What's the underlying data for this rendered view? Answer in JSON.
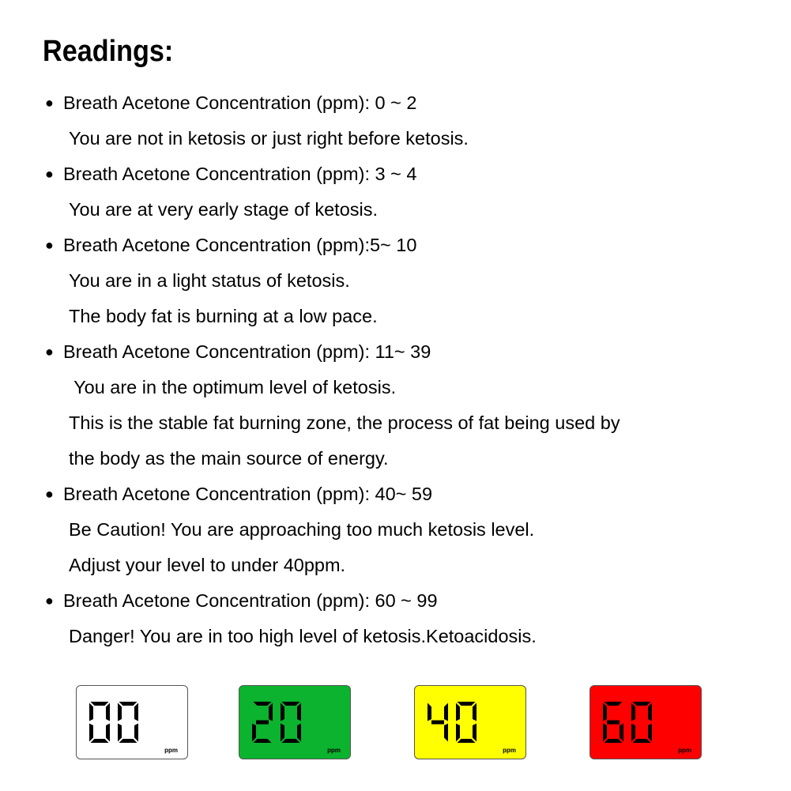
{
  "title": "Readings:",
  "readings": [
    {
      "range": "Breath Acetone Concentration (ppm): 0 ~ 2",
      "desc": [
        "You are not in ketosis or just right before ketosis."
      ]
    },
    {
      "range": "Breath Acetone Concentration (ppm): 3 ~ 4",
      "desc": [
        "You are at very early stage of ketosis."
      ]
    },
    {
      "range": "Breath Acetone Concentration (ppm):5~ 10",
      "desc": [
        "You are in a light status of ketosis.",
        "The body fat is burning at a low pace."
      ]
    },
    {
      "range": "Breath Acetone Concentration (ppm): 11~ 39",
      "desc": [
        " You are in the optimum level of ketosis.",
        "This is the stable fat burning zone, the process of fat being used by",
        "the body as the main source of energy."
      ]
    },
    {
      "range": "Breath Acetone Concentration (ppm): 40~ 59",
      "desc": [
        "Be Caution! You are approaching too much ketosis level.",
        "Adjust your level to under 40ppm."
      ]
    },
    {
      "range": "Breath Acetone Concentration (ppm): 60 ~ 99",
      "desc": [
        "Danger! You are in too high level of ketosis.Ketoacidosis."
      ]
    }
  ],
  "bullet_glyph": "●",
  "displays": [
    {
      "value": "00",
      "unit": "ppm",
      "color": "#ffffff"
    },
    {
      "value": "20",
      "unit": "ppm",
      "color": "#0cb32e"
    },
    {
      "value": "40",
      "unit": "ppm",
      "color": "#ffff00"
    },
    {
      "value": "60",
      "unit": "ppm",
      "color": "#fe0000"
    }
  ]
}
